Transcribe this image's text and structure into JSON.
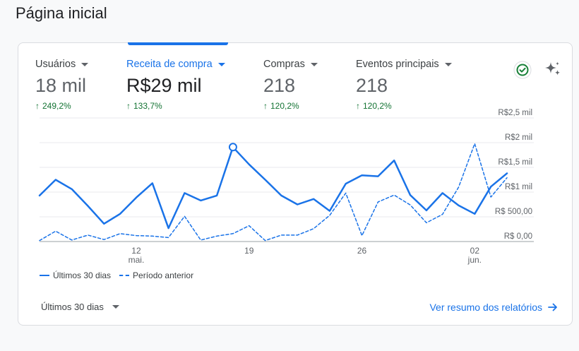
{
  "page": {
    "title": "Página inicial"
  },
  "metrics": [
    {
      "label": "Usuários",
      "value": "18 mil",
      "change": "249,2%",
      "active": false
    },
    {
      "label": "Receita de compra",
      "value": "R$29 mil",
      "change": "133,7%",
      "active": true
    },
    {
      "label": "Compras",
      "value": "218",
      "change": "120,2%",
      "active": false
    },
    {
      "label": "Eventos principais",
      "value": "218",
      "change": "120,2%",
      "active": false
    }
  ],
  "icons": {
    "status": "check-circle-icon",
    "insights": "sparkle-icon",
    "link_arrow": "arrow-right-icon"
  },
  "colors": {
    "accent": "#1a73e8",
    "positive": "#137333",
    "status_green": "#188038"
  },
  "legend": {
    "current": "Últimos 30 dias",
    "previous": "Período anterior"
  },
  "footer": {
    "period_select": "Últimos 30 dias",
    "report_link": "Ver resumo dos relatórios"
  },
  "chart_data": {
    "type": "line",
    "y_ticks": [
      {
        "value": 0,
        "label": "R$ 0,00"
      },
      {
        "value": 500,
        "label": "R$ 500,00"
      },
      {
        "value": 1000,
        "label": "R$1 mil"
      },
      {
        "value": 1500,
        "label": "R$1,5 mil"
      },
      {
        "value": 2000,
        "label": "R$2 mil"
      },
      {
        "value": 2500,
        "label": "R$2,5 mil"
      }
    ],
    "ylim": [
      0,
      2500
    ],
    "x_ticks": [
      {
        "index": 6,
        "day": "12",
        "month": "mai."
      },
      {
        "index": 13,
        "day": "19",
        "month": ""
      },
      {
        "index": 20,
        "day": "26",
        "month": ""
      },
      {
        "index": 27,
        "day": "02",
        "month": "jun."
      }
    ],
    "highlight_index": 12,
    "series": [
      {
        "name": "Últimos 30 dias",
        "style": "solid",
        "values": [
          930,
          1250,
          1060,
          720,
          360,
          560,
          890,
          1180,
          270,
          980,
          830,
          930,
          1910,
          1560,
          1250,
          930,
          750,
          860,
          620,
          1170,
          1340,
          1320,
          1640,
          940,
          630,
          980,
          730,
          560,
          1110,
          1380
        ]
      },
      {
        "name": "Período anterior",
        "style": "dashed",
        "values": [
          20,
          210,
          30,
          130,
          40,
          160,
          120,
          110,
          80,
          510,
          30,
          110,
          160,
          320,
          20,
          130,
          130,
          260,
          530,
          980,
          120,
          800,
          940,
          740,
          380,
          550,
          1100,
          1980,
          900,
          1290
        ]
      }
    ]
  }
}
